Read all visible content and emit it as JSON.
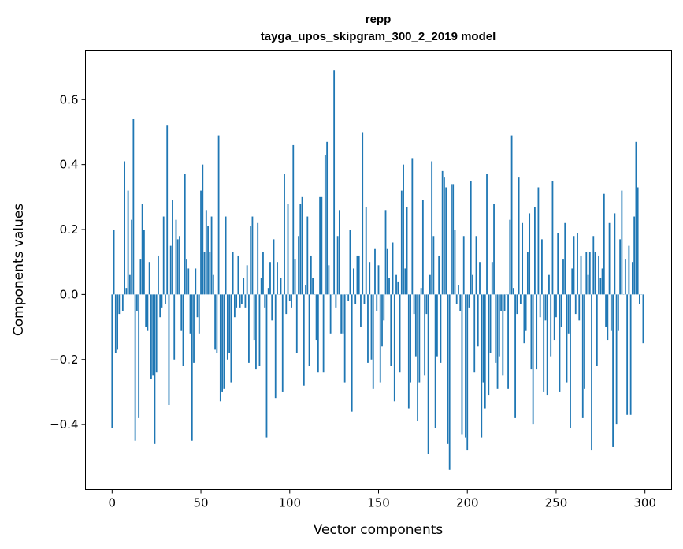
{
  "chart_data": {
    "type": "bar",
    "title": "repp",
    "subtitle": "tayga_upos_skipgram_300_2_2019 model",
    "xlabel": "Vector components",
    "ylabel": "Components values",
    "xlim": [
      -15,
      315
    ],
    "ylim": [
      -0.6,
      0.75
    ],
    "xticks": [
      0,
      50,
      100,
      150,
      200,
      250,
      300
    ],
    "yticks": [
      -0.4,
      -0.2,
      0.0,
      0.2,
      0.4,
      0.6
    ],
    "ytick_labels": [
      "−0.4",
      "−0.2",
      "0.0",
      "0.2",
      "0.4",
      "0.6"
    ],
    "xtick_labels": [
      "0",
      "50",
      "100",
      "150",
      "200",
      "250",
      "300"
    ],
    "grid": false,
    "color": "#1f77b4",
    "values": [
      -0.41,
      0.2,
      -0.18,
      -0.17,
      -0.06,
      0.0,
      -0.05,
      0.41,
      0.02,
      0.32,
      0.06,
      0.23,
      0.54,
      -0.45,
      -0.05,
      -0.38,
      0.11,
      0.28,
      0.2,
      -0.1,
      -0.11,
      0.1,
      -0.26,
      -0.25,
      -0.46,
      -0.24,
      0.12,
      -0.07,
      -0.04,
      0.24,
      -0.03,
      0.52,
      -0.34,
      0.15,
      0.29,
      -0.2,
      0.23,
      0.17,
      0.18,
      -0.11,
      -0.22,
      0.37,
      0.11,
      0.08,
      -0.12,
      -0.45,
      -0.21,
      0.08,
      -0.07,
      -0.12,
      0.32,
      0.4,
      0.13,
      0.26,
      0.21,
      0.13,
      0.24,
      0.06,
      -0.17,
      -0.18,
      0.49,
      -0.33,
      -0.3,
      -0.29,
      0.24,
      -0.2,
      -0.18,
      -0.27,
      0.13,
      -0.07,
      -0.04,
      0.12,
      -0.04,
      -0.03,
      0.05,
      -0.04,
      0.09,
      -0.21,
      0.21,
      0.24,
      -0.14,
      -0.23,
      0.22,
      -0.22,
      0.05,
      0.13,
      -0.04,
      -0.44,
      0.02,
      0.1,
      -0.08,
      0.17,
      -0.32,
      0.1,
      0.0,
      0.05,
      -0.3,
      0.37,
      -0.06,
      0.28,
      -0.02,
      -0.04,
      0.46,
      0.11,
      -0.18,
      0.18,
      0.28,
      0.3,
      -0.28,
      0.03,
      0.24,
      -0.22,
      0.12,
      0.05,
      0.0,
      -0.14,
      -0.24,
      0.3,
      0.3,
      -0.24,
      0.43,
      0.47,
      0.09,
      -0.12,
      0.0,
      0.69,
      -0.04,
      0.18,
      0.26,
      -0.12,
      -0.12,
      -0.27,
      0.0,
      -0.02,
      0.2,
      -0.36,
      0.08,
      -0.03,
      0.12,
      0.12,
      -0.1,
      0.5,
      -0.03,
      0.27,
      -0.21,
      0.1,
      -0.2,
      -0.29,
      0.14,
      -0.05,
      0.09,
      -0.27,
      -0.16,
      -0.08,
      0.26,
      0.14,
      0.05,
      -0.22,
      0.16,
      -0.33,
      0.06,
      0.04,
      -0.24,
      0.32,
      0.4,
      0.08,
      0.27,
      -0.35,
      -0.27,
      0.42,
      -0.06,
      -0.19,
      -0.39,
      -0.27,
      0.02,
      0.29,
      -0.25,
      -0.06,
      -0.49,
      0.06,
      0.41,
      0.18,
      -0.41,
      -0.19,
      0.12,
      -0.21,
      0.38,
      0.36,
      0.33,
      -0.46,
      -0.54,
      0.34,
      0.34,
      0.2,
      -0.03,
      0.03,
      -0.05,
      -0.43,
      0.18,
      -0.44,
      -0.48,
      -0.04,
      0.35,
      0.06,
      -0.24,
      0.18,
      -0.16,
      0.1,
      -0.44,
      -0.27,
      -0.35,
      0.37,
      -0.31,
      -0.18,
      0.1,
      0.28,
      -0.21,
      -0.29,
      -0.19,
      -0.05,
      -0.25,
      -0.05,
      0.0,
      -0.29,
      0.23,
      0.49,
      0.02,
      -0.38,
      -0.06,
      0.36,
      -0.03,
      0.22,
      -0.15,
      -0.11,
      0.13,
      0.25,
      -0.23,
      -0.4,
      0.27,
      -0.23,
      0.33,
      -0.07,
      0.17,
      -0.3,
      -0.08,
      -0.31,
      0.06,
      -0.19,
      0.35,
      -0.14,
      -0.07,
      0.19,
      -0.3,
      -0.1,
      0.11,
      0.22,
      -0.27,
      -0.12,
      -0.41,
      0.08,
      0.18,
      -0.06,
      0.19,
      -0.08,
      0.12,
      -0.38,
      -0.29,
      0.13,
      0.06,
      0.13,
      -0.48,
      0.18,
      0.13,
      -0.22,
      0.12,
      0.05,
      0.08,
      0.31,
      -0.1,
      -0.14,
      0.22,
      -0.11,
      -0.47,
      0.25,
      -0.4,
      -0.11,
      0.17,
      0.32,
      0.0,
      0.11,
      -0.37,
      0.15,
      -0.37,
      0.1,
      0.24,
      0.47,
      0.33,
      -0.03,
      0.0,
      -0.15
    ]
  }
}
